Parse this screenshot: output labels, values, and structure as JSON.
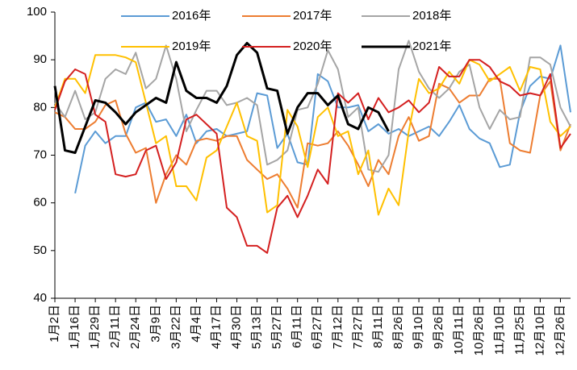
{
  "chart_data": {
    "type": "line",
    "categories": [
      "1月2日",
      null,
      "1月16日",
      null,
      "1月29日",
      null,
      "2月11日",
      null,
      "2月24日",
      null,
      "3月9日",
      null,
      "3月22日",
      null,
      "4月4日",
      null,
      "4月17日",
      null,
      "4月30日",
      null,
      "5月13日",
      null,
      "5月27日",
      null,
      "6月11日",
      null,
      "6月27日",
      null,
      "7月12日",
      null,
      "7月27日",
      null,
      "8月11日",
      null,
      "8月26日",
      null,
      "9月10日",
      null,
      "9月26日",
      null,
      "10月11日",
      null,
      "10月26日",
      null,
      "11月10日",
      null,
      "11月25日",
      null,
      "12月10日",
      null,
      "12月26日",
      null
    ],
    "series": [
      {
        "name": "2016年",
        "color": "#5b9bd5",
        "values": [
          null,
          null,
          62,
          72,
          75,
          72.5,
          74,
          74,
          80,
          81,
          77,
          77.5,
          74,
          78.5,
          72.5,
          75,
          75.5,
          74,
          74.5,
          75,
          83,
          82.5,
          71.5,
          74.5,
          68.5,
          68,
          87,
          85.5,
          80,
          80,
          80.5,
          75,
          76.5,
          74.5,
          75.5,
          74,
          75,
          76,
          74,
          77,
          80.5,
          75.5,
          73.5,
          72.5,
          67.5,
          68,
          79,
          84.5,
          86.5,
          86,
          93,
          79
        ]
      },
      {
        "name": "2017年",
        "color": "#ed7d31",
        "values": [
          79,
          78,
          75.5,
          75.5,
          77,
          80.5,
          81.5,
          74.5,
          70.5,
          71.5,
          60,
          66,
          70,
          68,
          73,
          73.5,
          73,
          74,
          74,
          69,
          67,
          65,
          66,
          63,
          59,
          72.5,
          72,
          72.5,
          75,
          72,
          68,
          63.5,
          69,
          66,
          74,
          78,
          73,
          74,
          85,
          84,
          81,
          82.5,
          82.5,
          86,
          86,
          72.5,
          71,
          70.5,
          82.5,
          85.5,
          71,
          76.5
        ]
      },
      {
        "name": "2018年",
        "color": "#a5a5a5",
        "values": [
          81,
          78,
          83.5,
          77.5,
          79,
          86,
          88,
          87,
          91.5,
          84,
          86,
          93,
          86,
          75,
          79.5,
          83.5,
          83.5,
          80.5,
          81,
          82,
          80.5,
          68,
          69,
          71,
          79.5,
          80,
          85,
          92,
          88,
          78,
          80,
          67,
          66.5,
          70,
          88,
          94,
          87.5,
          84,
          82,
          84,
          87.5,
          89,
          80,
          75.5,
          79.5,
          77.5,
          78,
          90.5,
          90.5,
          89,
          80,
          76
        ]
      },
      {
        "name": "2019年",
        "color": "#ffc000",
        "values": [
          80,
          86,
          86,
          83,
          91,
          91,
          91,
          90.5,
          89.5,
          81,
          72.5,
          74,
          63.5,
          63.5,
          60.5,
          69.5,
          71,
          76,
          81,
          74,
          73,
          58,
          59.5,
          79.5,
          76,
          67.5,
          78,
          80,
          74,
          75,
          66,
          71,
          57.5,
          63,
          59.5,
          75,
          86,
          83,
          84,
          87.5,
          85,
          90,
          89,
          85.5,
          87,
          88.5,
          83.5,
          88.5,
          88,
          77,
          74,
          76
        ]
      },
      {
        "name": "2020年",
        "color": "#d42020",
        "values": [
          79.5,
          85.5,
          88,
          87,
          78.5,
          77,
          66,
          65.5,
          66,
          71,
          72,
          65,
          68.5,
          77.5,
          78.5,
          76.5,
          74.5,
          59,
          57,
          51,
          51,
          49.5,
          59,
          61.5,
          57,
          61.5,
          67,
          64,
          83,
          81,
          83,
          77.5,
          82,
          79,
          80,
          81.5,
          79,
          81,
          88.5,
          86.5,
          86.5,
          90,
          90,
          88.5,
          85.5,
          84.5,
          82.5,
          83,
          82.5,
          87,
          71.5,
          74.5
        ]
      },
      {
        "name": "2021年",
        "color": "#000000",
        "values": [
          84.5,
          71,
          70.5,
          76,
          81.5,
          81,
          79,
          76.5,
          79,
          80.5,
          82,
          81,
          89.5,
          83.5,
          82,
          82,
          81,
          84.5,
          91,
          93.5,
          91.5,
          84,
          83.5,
          74.5,
          80,
          83,
          83,
          80.5,
          82.5,
          76.5,
          75.5,
          80,
          79,
          75,
          null,
          null,
          null,
          null,
          null,
          null,
          null,
          null,
          null,
          null,
          null,
          null,
          null,
          null,
          null,
          null,
          null,
          null
        ]
      }
    ],
    "ylim": [
      40,
      100
    ],
    "yticks": [
      40,
      50,
      60,
      70,
      80,
      90,
      100
    ],
    "grid": false,
    "legend": "top"
  }
}
